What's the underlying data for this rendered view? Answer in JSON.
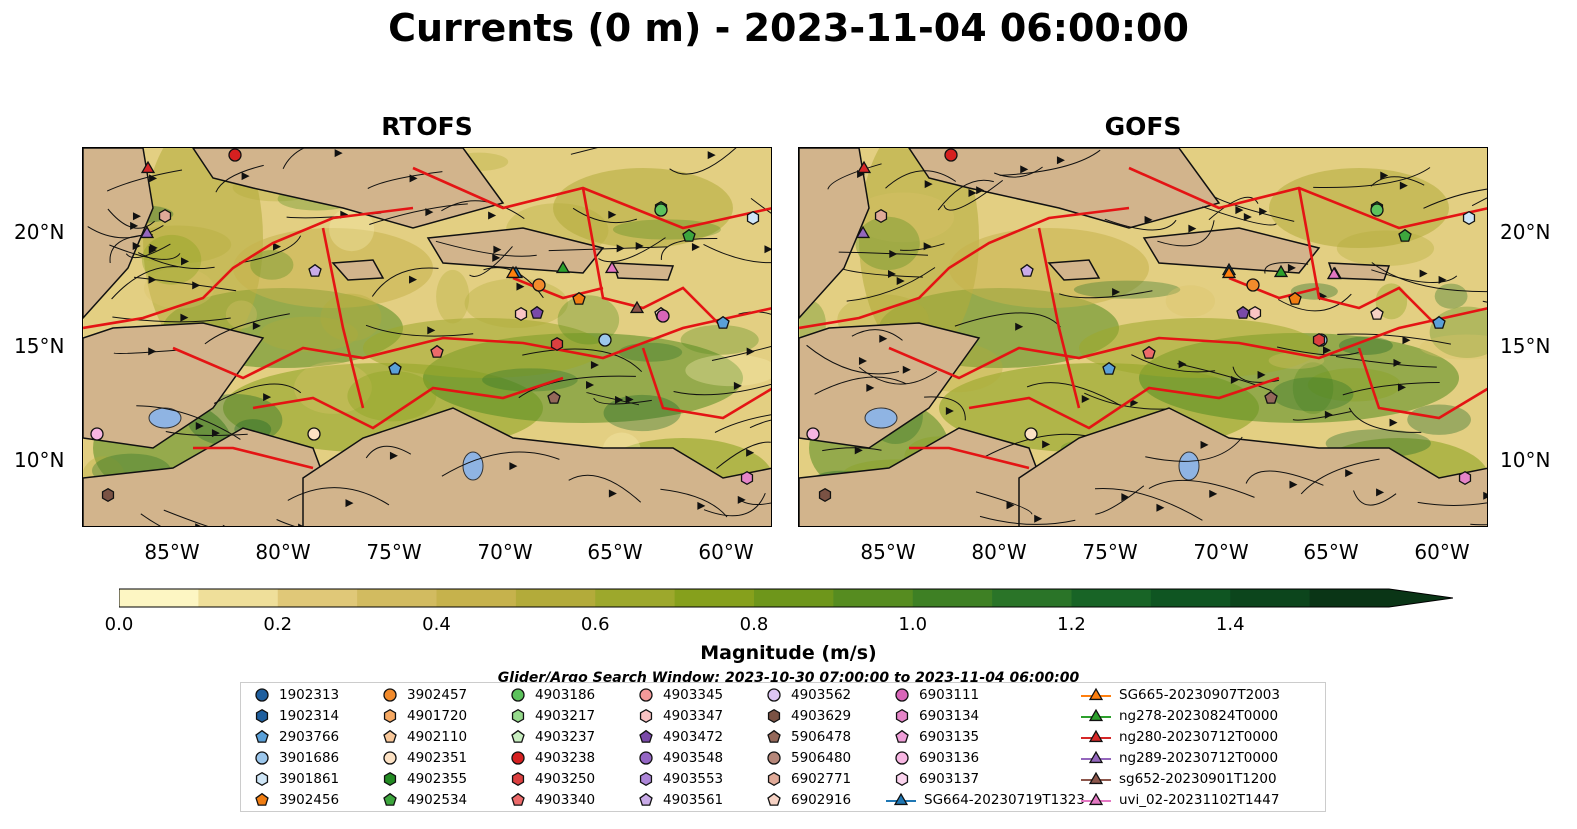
{
  "title": "Currents (0 m) - 2023-11-04 06:00:00",
  "panels": [
    {
      "title": "RTOFS"
    },
    {
      "title": "GOFS"
    }
  ],
  "lon_labels": [
    "85°W",
    "80°W",
    "75°W",
    "70°W",
    "65°W",
    "60°W"
  ],
  "lat_labels": [
    "20°N",
    "15°N",
    "10°N"
  ],
  "colorbar": {
    "label": "Magnitude (m/s)",
    "ticks": [
      "0.0",
      "0.2",
      "0.4",
      "0.6",
      "0.8",
      "1.0",
      "1.2",
      "1.4"
    ],
    "range": [
      0.0,
      1.6
    ],
    "colors": [
      "#fdf6c3",
      "#efdf9a",
      "#e0c878",
      "#d2bb60",
      "#c6b24c",
      "#b3ab3a",
      "#9da82c",
      "#86a01c",
      "#6e961b",
      "#568c20",
      "#3e8024",
      "#2a7428",
      "#186426",
      "#0f5522",
      "#0c451c",
      "#0a3516"
    ]
  },
  "search_window": "Glider/Argo Search Window: 2023-10-30 07:00:00 to 2023-11-04 06:00:00",
  "legend": [
    {
      "label": "1902313",
      "marker": "circle",
      "color": "#1f5f9e"
    },
    {
      "label": "1902314",
      "marker": "hexagon",
      "color": "#1f5f9e"
    },
    {
      "label": "2903766",
      "marker": "pentagon",
      "color": "#5aa0d8"
    },
    {
      "label": "3901686",
      "marker": "circle",
      "color": "#9cc7ec"
    },
    {
      "label": "3901861",
      "marker": "hexagon",
      "color": "#cfe6f7"
    },
    {
      "label": "3902456",
      "marker": "pentagon",
      "color": "#f07d12"
    },
    {
      "label": "3902457",
      "marker": "circle",
      "color": "#f28b2c"
    },
    {
      "label": "4901720",
      "marker": "hexagon",
      "color": "#f6a963"
    },
    {
      "label": "4902110",
      "marker": "pentagon",
      "color": "#f9c89a"
    },
    {
      "label": "4902351",
      "marker": "circle",
      "color": "#fde2c4"
    },
    {
      "label": "4902355",
      "marker": "hexagon",
      "color": "#238b23"
    },
    {
      "label": "4902534",
      "marker": "pentagon",
      "color": "#3da63d"
    },
    {
      "label": "4903186",
      "marker": "circle",
      "color": "#5cc25c"
    },
    {
      "label": "4903217",
      "marker": "hexagon",
      "color": "#96da8c"
    },
    {
      "label": "4903237",
      "marker": "pentagon",
      "color": "#c8eec0"
    },
    {
      "label": "4903238",
      "marker": "circle",
      "color": "#d62020"
    },
    {
      "label": "4903250",
      "marker": "hexagon",
      "color": "#dc4040"
    },
    {
      "label": "4903340",
      "marker": "pentagon",
      "color": "#ec6a6a"
    },
    {
      "label": "4903345",
      "marker": "circle",
      "color": "#f49a9a"
    },
    {
      "label": "4903347",
      "marker": "hexagon",
      "color": "#fac4c4"
    },
    {
      "label": "4903472",
      "marker": "pentagon",
      "color": "#7a4aa8"
    },
    {
      "label": "4903548",
      "marker": "circle",
      "color": "#9466c4"
    },
    {
      "label": "4903553",
      "marker": "hexagon",
      "color": "#ad86d8"
    },
    {
      "label": "4903561",
      "marker": "pentagon",
      "color": "#c9abe8"
    },
    {
      "label": "4903562",
      "marker": "circle",
      "color": "#dec6f4"
    },
    {
      "label": "4903629",
      "marker": "hexagon",
      "color": "#7a5244"
    },
    {
      "label": "5906478",
      "marker": "pentagon",
      "color": "#94685a"
    },
    {
      "label": "5906480",
      "marker": "circle",
      "color": "#b6877a"
    },
    {
      "label": "6902771",
      "marker": "hexagon",
      "color": "#e0aa98"
    },
    {
      "label": "6902916",
      "marker": "pentagon",
      "color": "#f6d2c4"
    },
    {
      "label": "6903111",
      "marker": "circle",
      "color": "#d865b8"
    },
    {
      "label": "6903134",
      "marker": "hexagon",
      "color": "#e585c8"
    },
    {
      "label": "6903135",
      "marker": "pentagon",
      "color": "#ef9ed8"
    },
    {
      "label": "6903136",
      "marker": "circle",
      "color": "#f7b6e2"
    },
    {
      "label": "6903137",
      "marker": "hexagon",
      "color": "#fbd4ee"
    },
    {
      "label": "SG664-20230719T1323",
      "marker": "triangle",
      "color": "#1f77b4"
    },
    {
      "label": "SG665-20230907T2003",
      "marker": "triangle",
      "color": "#ff7f0e"
    },
    {
      "label": "ng278-20230824T0000",
      "marker": "triangle",
      "color": "#2ca02c"
    },
    {
      "label": "ng280-20230712T0000",
      "marker": "triangle",
      "color": "#d62728"
    },
    {
      "label": "ng289-20230712T0000",
      "marker": "triangle",
      "color": "#9467bd"
    },
    {
      "label": "sg652-20230901T1200",
      "marker": "triangle",
      "color": "#8c564b"
    },
    {
      "label": "uvi_02-20231102T1447",
      "marker": "triangle",
      "color": "#e377c2"
    }
  ]
}
